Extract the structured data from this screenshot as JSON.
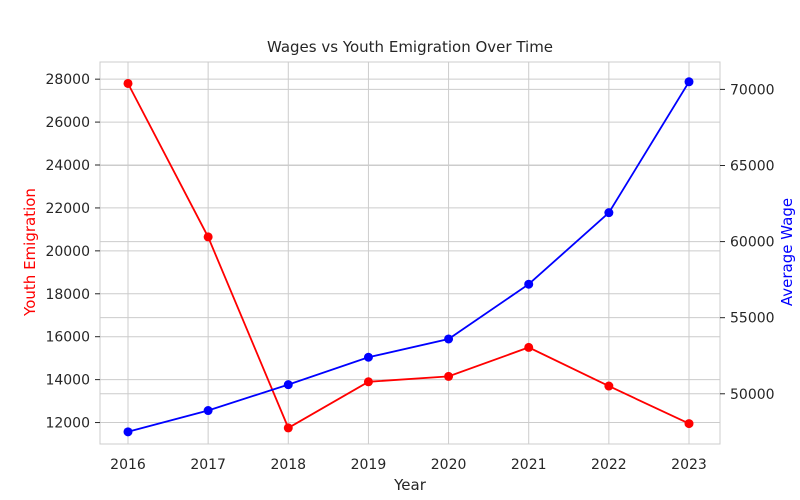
{
  "chart_data": {
    "type": "line",
    "title": "Wages vs Youth Emigration Over Time",
    "xlabel": "Year",
    "ylabel": "Youth Emigration",
    "y2label": "Average Wage",
    "x": [
      2016,
      2017,
      2018,
      2019,
      2020,
      2021,
      2022,
      2023
    ],
    "x_ticks": [
      "2016",
      "2017",
      "2018",
      "2019",
      "2020",
      "2021",
      "2022",
      "2023"
    ],
    "y_ticks": [
      "12000",
      "14000",
      "16000",
      "18000",
      "20000",
      "22000",
      "24000",
      "26000",
      "28000"
    ],
    "y2_ticks": [
      "50000",
      "55000",
      "60000",
      "65000",
      "70000"
    ],
    "ylim": [
      11000,
      28800
    ],
    "y2lim": [
      46700,
      71800
    ],
    "grid": true,
    "series": [
      {
        "axis": "left",
        "color": "#ff0000",
        "values": [
          27800,
          20650,
          11750,
          13900,
          14150,
          15500,
          13700,
          11950
        ]
      },
      {
        "axis": "right",
        "color": "#0000ff",
        "values": [
          47500,
          48900,
          50600,
          52400,
          53600,
          57200,
          61900,
          70500
        ]
      }
    ],
    "colors": {
      "left_axis_label": "#ff0000",
      "right_axis_label": "#0000ff",
      "grid": "#cccccc",
      "frame": "#cccccc"
    }
  }
}
